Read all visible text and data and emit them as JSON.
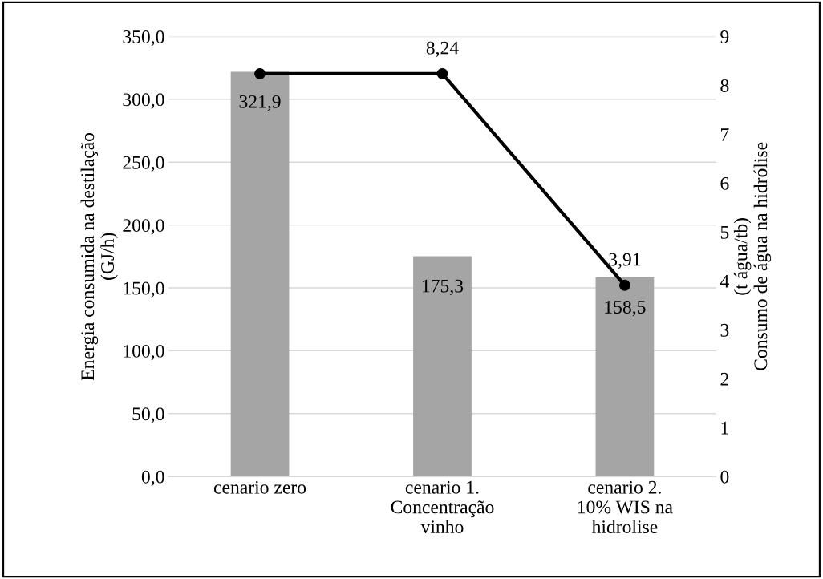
{
  "chart_data": {
    "type": "bar",
    "categories": [
      "cenario zero",
      "cenario 1.\nConcentração\nvinho",
      "cenario 2.\n10% WIS na\nhidrolise"
    ],
    "ylabel": "Energia consumida na destilação\n(GJ/h)",
    "y2label": "(t água/tb)\nConsumo de água na hidrólise",
    "series": [
      {
        "color": "#a5a5a5",
        "values": [
          321.9,
          175.3,
          158.5
        ],
        "value_labels": [
          "321,9",
          "175,3",
          "158,5"
        ]
      },
      {
        "type": "line",
        "axis": "y2",
        "color": "#000000",
        "marker": "circle",
        "line_style": "solid",
        "values": [
          8.24,
          8.24,
          3.91
        ],
        "value_labels": [
          null,
          "8,24",
          "3,91"
        ]
      }
    ],
    "ylim": [
      0,
      350
    ],
    "yticks": [
      {
        "value": 0,
        "label": "0,0"
      },
      {
        "value": 50,
        "label": "50,0"
      },
      {
        "value": 100,
        "label": "100,0"
      },
      {
        "value": 150,
        "label": "150,0"
      },
      {
        "value": 200,
        "label": "200,0"
      },
      {
        "value": 250,
        "label": "250,0"
      },
      {
        "value": 300,
        "label": "300,0"
      },
      {
        "value": 350,
        "label": "350,0"
      }
    ],
    "y2lim": [
      0,
      9
    ],
    "y2ticks": [
      0,
      1,
      2,
      3,
      4,
      5,
      6,
      7,
      8,
      9
    ],
    "grid": "y"
  }
}
